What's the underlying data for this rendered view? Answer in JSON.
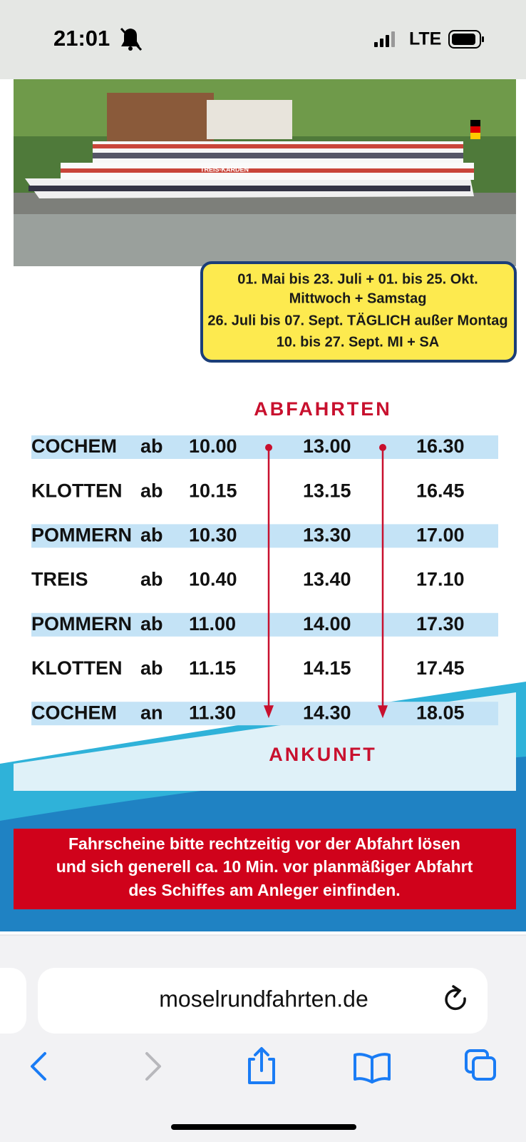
{
  "status_bar": {
    "time": "21:01",
    "network": "LTE"
  },
  "photo": {
    "ship_name": "TREIS-KARDEN"
  },
  "notice": {
    "lines": [
      "01. Mai bis 23. Juli + 01. bis 25. Okt.",
      "Mittwoch + Samstag",
      "26. Juli bis 07. Sept. TÄGLICH außer Montag",
      "10. bis 27. Sept. MI + SA"
    ]
  },
  "timetable": {
    "departures_heading": "ABFAHRTEN",
    "rows": [
      [
        "COCHEM",
        "ab",
        "10.00",
        "13.00",
        "16.30"
      ],
      [
        "KLOTTEN",
        "ab",
        "10.15",
        "13.15",
        "16.45"
      ],
      [
        "POMMERN",
        "ab",
        "10.30",
        "13.30",
        "17.00"
      ],
      [
        "TREIS",
        "ab",
        "10.40",
        "13.40",
        "17.10"
      ],
      [
        "POMMERN",
        "ab",
        "11.00",
        "14.00",
        "17.30"
      ],
      [
        "KLOTTEN",
        "ab",
        "11.15",
        "14.15",
        "17.45"
      ],
      [
        "COCHEM",
        "an",
        "11.30",
        "14.30",
        "18.05"
      ]
    ],
    "arrival_heading": "ANKUNFT"
  },
  "footer_notice": {
    "lines": [
      "Fahrscheine bitte rechtzeitig vor der Abfahrt lösen",
      "und sich generell ca. 10 Min. vor planmäßiger Abfahrt",
      "des Schiffes am Anleger einfinden."
    ]
  },
  "browser": {
    "url": "moselrundfahrten.de"
  }
}
